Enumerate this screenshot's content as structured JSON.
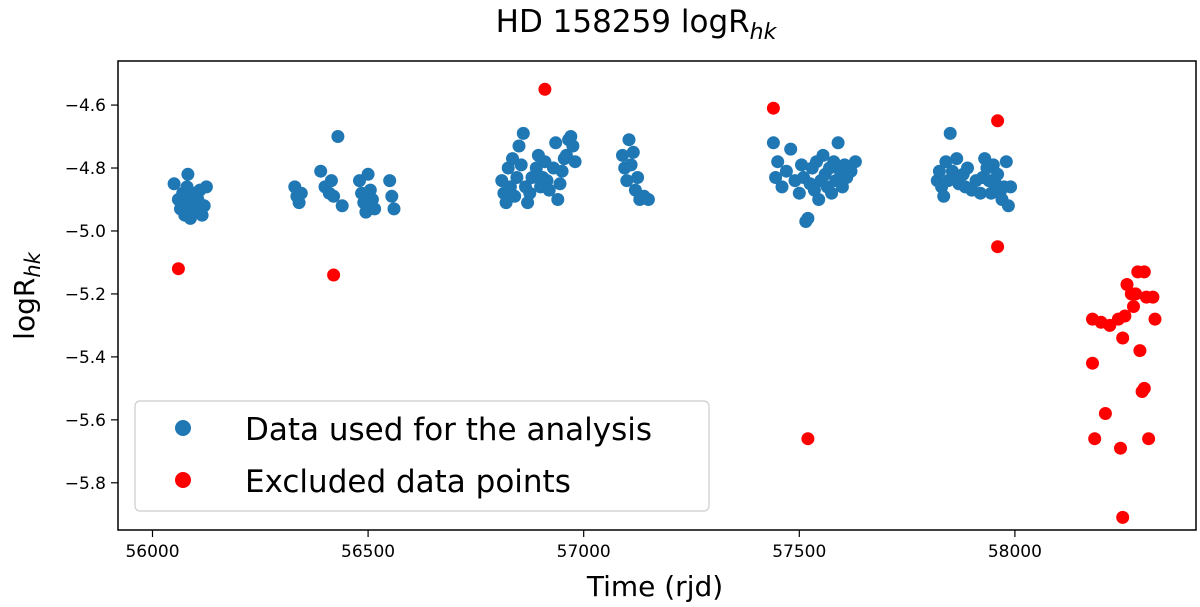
{
  "chart_data": {
    "type": "scatter",
    "title": "HD 158259 logR",
    "title_sub": "hk",
    "xlabel": "Time (rjd)",
    "ylabel": "logR",
    "ylabel_sub": "hk",
    "xlim": [
      55920,
      58420
    ],
    "ylim": [
      -5.95,
      -4.46
    ],
    "xticks": [
      56000,
      56500,
      57000,
      57500,
      58000
    ],
    "yticks": [
      -4.6,
      -4.8,
      -5.0,
      -5.2,
      -5.4,
      -5.6,
      -5.8
    ],
    "ytick_labels": [
      "−4.6",
      "−4.8",
      "−5.0",
      "−5.2",
      "−5.4",
      "−5.6",
      "−5.8"
    ],
    "grid": false,
    "legend_position": "lower-left",
    "series": [
      {
        "name": "Data used for the analysis",
        "color": "#1f77b4",
        "points": [
          [
            56050,
            -4.85
          ],
          [
            56060,
            -4.9
          ],
          [
            56065,
            -4.93
          ],
          [
            56070,
            -4.88
          ],
          [
            56075,
            -4.95
          ],
          [
            56080,
            -4.86
          ],
          [
            56082,
            -4.82
          ],
          [
            56085,
            -4.9
          ],
          [
            56088,
            -4.96
          ],
          [
            56090,
            -4.92
          ],
          [
            56095,
            -4.88
          ],
          [
            56100,
            -4.94
          ],
          [
            56105,
            -4.9
          ],
          [
            56110,
            -4.87
          ],
          [
            56115,
            -4.95
          ],
          [
            56120,
            -4.92
          ],
          [
            56125,
            -4.86
          ],
          [
            56330,
            -4.86
          ],
          [
            56335,
            -4.89
          ],
          [
            56340,
            -4.91
          ],
          [
            56345,
            -4.88
          ],
          [
            56390,
            -4.81
          ],
          [
            56400,
            -4.86
          ],
          [
            56410,
            -4.88
          ],
          [
            56415,
            -4.84
          ],
          [
            56420,
            -4.89
          ],
          [
            56430,
            -4.7
          ],
          [
            56440,
            -4.92
          ],
          [
            56480,
            -4.84
          ],
          [
            56485,
            -4.88
          ],
          [
            56490,
            -4.91
          ],
          [
            56495,
            -4.94
          ],
          [
            56500,
            -4.82
          ],
          [
            56505,
            -4.87
          ],
          [
            56510,
            -4.9
          ],
          [
            56515,
            -4.93
          ],
          [
            56550,
            -4.84
          ],
          [
            56555,
            -4.89
          ],
          [
            56560,
            -4.93
          ],
          [
            56810,
            -4.84
          ],
          [
            56815,
            -4.88
          ],
          [
            56820,
            -4.91
          ],
          [
            56825,
            -4.8
          ],
          [
            56830,
            -4.86
          ],
          [
            56835,
            -4.77
          ],
          [
            56840,
            -4.89
          ],
          [
            56845,
            -4.83
          ],
          [
            56850,
            -4.73
          ],
          [
            56855,
            -4.79
          ],
          [
            56860,
            -4.69
          ],
          [
            56865,
            -4.86
          ],
          [
            56870,
            -4.91
          ],
          [
            56875,
            -4.88
          ],
          [
            56880,
            -4.83
          ],
          [
            56890,
            -4.8
          ],
          [
            56895,
            -4.76
          ],
          [
            56900,
            -4.86
          ],
          [
            56905,
            -4.83
          ],
          [
            56910,
            -4.78
          ],
          [
            56915,
            -4.84
          ],
          [
            56920,
            -4.87
          ],
          [
            56930,
            -4.8
          ],
          [
            56935,
            -4.72
          ],
          [
            56940,
            -4.9
          ],
          [
            56945,
            -4.85
          ],
          [
            56950,
            -4.81
          ],
          [
            56955,
            -4.77
          ],
          [
            56960,
            -4.76
          ],
          [
            56965,
            -4.71
          ],
          [
            56970,
            -4.7
          ],
          [
            56975,
            -4.73
          ],
          [
            56980,
            -4.78
          ],
          [
            57090,
            -4.76
          ],
          [
            57095,
            -4.8
          ],
          [
            57100,
            -4.84
          ],
          [
            57105,
            -4.71
          ],
          [
            57110,
            -4.79
          ],
          [
            57115,
            -4.75
          ],
          [
            57120,
            -4.87
          ],
          [
            57125,
            -4.83
          ],
          [
            57130,
            -4.9
          ],
          [
            57140,
            -4.89
          ],
          [
            57150,
            -4.9
          ],
          [
            57440,
            -4.72
          ],
          [
            57445,
            -4.83
          ],
          [
            57450,
            -4.78
          ],
          [
            57460,
            -4.86
          ],
          [
            57470,
            -4.81
          ],
          [
            57480,
            -4.74
          ],
          [
            57490,
            -4.84
          ],
          [
            57500,
            -4.88
          ],
          [
            57505,
            -4.79
          ],
          [
            57510,
            -4.83
          ],
          [
            57515,
            -4.97
          ],
          [
            57520,
            -4.96
          ],
          [
            57525,
            -4.85
          ],
          [
            57530,
            -4.8
          ],
          [
            57535,
            -4.87
          ],
          [
            57540,
            -4.78
          ],
          [
            57545,
            -4.9
          ],
          [
            57550,
            -4.84
          ],
          [
            57555,
            -4.76
          ],
          [
            57560,
            -4.82
          ],
          [
            57565,
            -4.86
          ],
          [
            57570,
            -4.8
          ],
          [
            57575,
            -4.88
          ],
          [
            57580,
            -4.78
          ],
          [
            57585,
            -4.84
          ],
          [
            57590,
            -4.72
          ],
          [
            57595,
            -4.81
          ],
          [
            57600,
            -4.86
          ],
          [
            57605,
            -4.79
          ],
          [
            57610,
            -4.83
          ],
          [
            57620,
            -4.81
          ],
          [
            57630,
            -4.78
          ],
          [
            57820,
            -4.84
          ],
          [
            57825,
            -4.81
          ],
          [
            57830,
            -4.86
          ],
          [
            57835,
            -4.89
          ],
          [
            57840,
            -4.78
          ],
          [
            57845,
            -4.84
          ],
          [
            57850,
            -4.69
          ],
          [
            57855,
            -4.81
          ],
          [
            57860,
            -4.83
          ],
          [
            57865,
            -4.77
          ],
          [
            57870,
            -4.85
          ],
          [
            57880,
            -4.82
          ],
          [
            57885,
            -4.86
          ],
          [
            57890,
            -4.8
          ],
          [
            57900,
            -4.87
          ],
          [
            57910,
            -4.84
          ],
          [
            57920,
            -4.88
          ],
          [
            57925,
            -4.83
          ],
          [
            57930,
            -4.77
          ],
          [
            57935,
            -4.8
          ],
          [
            57940,
            -4.84
          ],
          [
            57945,
            -4.88
          ],
          [
            57950,
            -4.79
          ],
          [
            57955,
            -4.85
          ],
          [
            57960,
            -4.82
          ],
          [
            57965,
            -4.88
          ],
          [
            57970,
            -4.9
          ],
          [
            57975,
            -4.86
          ],
          [
            57980,
            -4.78
          ],
          [
            57985,
            -4.92
          ],
          [
            57990,
            -4.86
          ]
        ]
      },
      {
        "name": "Excluded data points",
        "color": "#ff0000",
        "points": [
          [
            56060,
            -5.12
          ],
          [
            56420,
            -5.14
          ],
          [
            56910,
            -4.55
          ],
          [
            57440,
            -4.61
          ],
          [
            57520,
            -5.66
          ],
          [
            57960,
            -4.65
          ],
          [
            57960,
            -5.05
          ],
          [
            58180,
            -5.28
          ],
          [
            58180,
            -5.42
          ],
          [
            58185,
            -5.66
          ],
          [
            58200,
            -5.29
          ],
          [
            58210,
            -5.58
          ],
          [
            58220,
            -5.3
          ],
          [
            58240,
            -5.28
          ],
          [
            58245,
            -5.69
          ],
          [
            58250,
            -5.34
          ],
          [
            58250,
            -5.91
          ],
          [
            58255,
            -5.27
          ],
          [
            58260,
            -5.17
          ],
          [
            58270,
            -5.2
          ],
          [
            58275,
            -5.24
          ],
          [
            58280,
            -5.2
          ],
          [
            58285,
            -5.13
          ],
          [
            58290,
            -5.38
          ],
          [
            58295,
            -5.51
          ],
          [
            58300,
            -5.13
          ],
          [
            58300,
            -5.5
          ],
          [
            58305,
            -5.21
          ],
          [
            58310,
            -5.66
          ],
          [
            58320,
            -5.21
          ],
          [
            58325,
            -5.28
          ]
        ]
      }
    ]
  }
}
